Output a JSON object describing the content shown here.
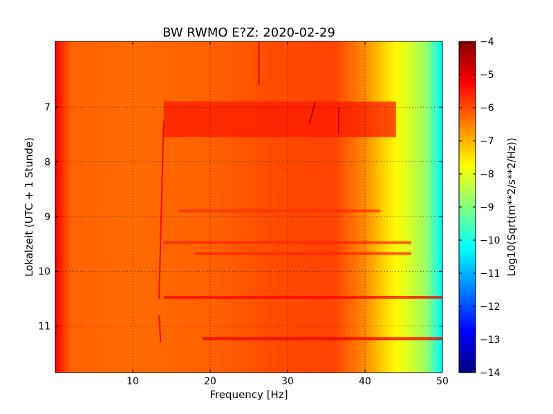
{
  "chart_data": {
    "type": "heatmap",
    "title": "BW RWMO E?Z: 2020-02-29",
    "xlabel": "Frequency [Hz]",
    "ylabel": "Lokalzeit (UTC + 1 Stunde)",
    "xlim": [
      0,
      50
    ],
    "ylim": [
      5.8,
      11.85
    ],
    "y_inverted": true,
    "grid": true,
    "colormap": "jet",
    "x_ticks": [
      10,
      20,
      30,
      40,
      50
    ],
    "x_tick_labels": [
      "10",
      "20",
      "30",
      "40",
      "50"
    ],
    "y_ticks": [
      7,
      8,
      9,
      10,
      11
    ],
    "y_tick_labels": [
      "7",
      "8",
      "9",
      "10",
      "11"
    ],
    "colorbar": {
      "label": "Log10(Sqrt(m**2/s**2/Hz))",
      "range": [
        -14,
        -4
      ],
      "ticks": [
        -4,
        -5,
        -6,
        -7,
        -8,
        -9,
        -10,
        -11,
        -12,
        -13,
        -14
      ],
      "tick_labels": [
        "−4",
        "−5",
        "−6",
        "−7",
        "−8",
        "−9",
        "−10",
        "−11",
        "−12",
        "−13",
        "−14"
      ]
    },
    "frequency_profile": {
      "frequency_hz": [
        0,
        0.5,
        2,
        10,
        20,
        28,
        36,
        40,
        42,
        44,
        46,
        48,
        49,
        50
      ],
      "level": [
        -5.0,
        -5.5,
        -6.2,
        -6.3,
        -6.2,
        -6.0,
        -5.9,
        -6.6,
        -7.2,
        -7.7,
        -8.2,
        -8.8,
        -9.6,
        -10.3
      ]
    },
    "features": [
      {
        "kind": "band",
        "t_start": 6.9,
        "t_end": 7.55,
        "f_start": 14,
        "f_end": 44,
        "level": -5.5
      },
      {
        "kind": "band",
        "t_start": 10.45,
        "t_end": 10.5,
        "f_start": 14,
        "f_end": 50,
        "level": -5.2
      },
      {
        "kind": "band",
        "t_start": 11.2,
        "t_end": 11.26,
        "f_start": 19,
        "f_end": 50,
        "level": -5.1
      },
      {
        "kind": "band",
        "t_start": 9.45,
        "t_end": 9.5,
        "f_start": 14,
        "f_end": 46,
        "level": -5.6
      },
      {
        "kind": "band",
        "t_start": 9.65,
        "t_end": 9.7,
        "f_start": 18,
        "f_end": 46,
        "level": -5.6
      },
      {
        "kind": "band",
        "t_start": 8.87,
        "t_end": 8.92,
        "f_start": 16,
        "f_end": 42,
        "level": -5.7
      },
      {
        "kind": "line",
        "t_start": 5.8,
        "t_end": 6.6,
        "f_start": 26.3,
        "f_end": 26.3,
        "level": -4.9
      },
      {
        "kind": "line",
        "t_start": 7.0,
        "t_end": 7.5,
        "f_start": 36.6,
        "f_end": 36.6,
        "level": -4.6
      },
      {
        "kind": "line",
        "t_start": 6.9,
        "t_end": 7.3,
        "f_start": 33.6,
        "f_end": 32.8,
        "level": -4.5
      },
      {
        "kind": "line",
        "t_start": 7.25,
        "t_end": 10.5,
        "f_start": 14.0,
        "f_end": 13.4,
        "level": -5.2
      },
      {
        "kind": "line",
        "t_start": 10.8,
        "t_end": 11.3,
        "f_start": 13.4,
        "f_end": 13.6,
        "level": -5.2
      }
    ]
  }
}
